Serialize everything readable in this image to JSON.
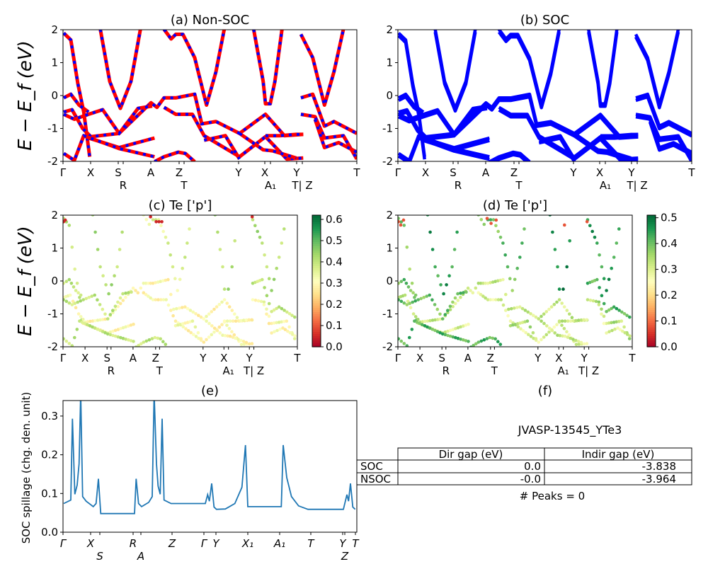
{
  "chart_data": [
    {
      "panel": "a",
      "type": "line",
      "title": "(a) Non-SOC",
      "ylabel": "E − E_f (eV)",
      "ylim": [
        -2,
        2
      ],
      "yticks": [
        -2,
        -1,
        0,
        1,
        2
      ],
      "xlim": [
        0,
        41.5
      ],
      "xticks": [
        {
          "k": 0,
          "label": "Γ"
        },
        {
          "k": 3.9,
          "label": "X"
        },
        {
          "k": 7.8,
          "label": "S"
        },
        {
          "k": 8.5,
          "label": "R"
        },
        {
          "k": 12.4,
          "label": "A"
        },
        {
          "k": 16.4,
          "label": "Z"
        },
        {
          "k": 17.1,
          "label": "T"
        },
        {
          "k": 24.8,
          "label": "Y"
        },
        {
          "k": 28.5,
          "label": "X"
        },
        {
          "k": 29.3,
          "label": "A₁"
        },
        {
          "k": 33.0,
          "label": "Y"
        },
        {
          "k": 33.8,
          "label": "T| Z"
        },
        {
          "k": 41.5,
          "label": "T"
        }
      ],
      "line_colors": [
        "#ff0000",
        "#0000ff"
      ],
      "style": "red solid with blue dashed overlay (spin up / spin down)"
    },
    {
      "panel": "b",
      "type": "line",
      "title": "(b) SOC",
      "ylim": [
        -2,
        2
      ],
      "line_color": "#0000ff"
    },
    {
      "panel": "c",
      "type": "scatter",
      "title": "(c)  Te ['p']",
      "ylabel": "E − E_f (eV)",
      "ylim": [
        -2,
        2
      ],
      "colormap": "RdYlGn",
      "colorbar": {
        "min": 0.0,
        "max": 0.62,
        "ticks": [
          "0.0",
          "0.1",
          "0.2",
          "0.3",
          "0.4",
          "0.5",
          "0.6"
        ]
      },
      "band_weights": [
        0.4,
        0.42,
        0.36,
        0.42,
        0.42,
        0.4,
        0.3,
        0.4,
        0.3,
        0.4,
        0.3,
        0.32,
        0.3,
        0.4,
        0.32,
        0.3,
        0.3,
        0.4
      ],
      "hot_points": [
        [
          0.1,
          1.8
        ],
        [
          0.4,
          1.85
        ],
        [
          16.5,
          1.8
        ],
        [
          17.0,
          1.8
        ],
        [
          17.5,
          1.8
        ],
        [
          33.5,
          1.95
        ],
        [
          15.5,
          1.95
        ]
      ],
      "hot_weight": 0.05
    },
    {
      "panel": "d",
      "type": "scatter",
      "title": "(d) Te ['p']",
      "ylim": [
        -2,
        2
      ],
      "colormap": "RdYlGn",
      "colorbar": {
        "min": 0.0,
        "max": 0.51,
        "ticks": [
          "0.0",
          "0.1",
          "0.2",
          "0.3",
          "0.4",
          "0.5"
        ]
      },
      "band_weights": [
        0.38,
        0.45,
        0.4,
        0.48,
        0.45,
        0.4,
        0.32,
        0.4,
        0.3,
        0.42,
        0.3,
        0.34,
        0.32,
        0.42,
        0.34,
        0.3,
        0.32,
        0.42
      ],
      "hot_points": [
        [
          0.1,
          1.8
        ],
        [
          0.5,
          1.7
        ],
        [
          1.0,
          1.85
        ],
        [
          15.8,
          1.9
        ],
        [
          16.5,
          1.75
        ],
        [
          17.4,
          1.85
        ],
        [
          29.5,
          1.7
        ],
        [
          33.5,
          1.8
        ]
      ],
      "hot_weight": 0.08
    },
    {
      "panel": "e",
      "type": "line",
      "title": "(e)",
      "ylabel": "SOC spillage (chg. den. unit)",
      "ylim": [
        0,
        0.34
      ],
      "yticks": [
        "0.0",
        "0.1",
        "0.2",
        "0.3"
      ],
      "xlim": [
        0,
        41.5
      ],
      "xticks": [
        {
          "k": 0,
          "label": "Γ"
        },
        {
          "k": 3.9,
          "label": "X"
        },
        {
          "k": 5.2,
          "label": "S"
        },
        {
          "k": 9.9,
          "label": "R"
        },
        {
          "k": 11.0,
          "label": "A"
        },
        {
          "k": 15.4,
          "label": "Z"
        },
        {
          "k": 19.9,
          "label": "Γ"
        },
        {
          "k": 21.6,
          "label": "Y"
        },
        {
          "k": 26.1,
          "label": "X₁"
        },
        {
          "k": 30.6,
          "label": "A₁"
        },
        {
          "k": 35.0,
          "label": "T"
        },
        {
          "k": 39.5,
          "label": "Y"
        },
        {
          "k": 39.8,
          "label": "Z"
        },
        {
          "k": 41.3,
          "label": "T"
        }
      ],
      "line_color": "#1f77b4",
      "x": [
        0.1,
        1.1,
        1.33,
        1.67,
        2.0,
        2.27,
        2.5,
        2.77,
        3.27,
        4.27,
        4.67,
        5.0,
        5.33,
        10.1,
        10.33,
        10.67,
        11.1,
        12.1,
        12.6,
        12.87,
        13.2,
        13.43,
        13.73,
        14.0,
        14.27,
        15.27,
        20.1,
        20.43,
        20.67,
        21.0,
        21.33,
        21.67,
        22.93,
        24.27,
        25.27,
        25.77,
        26.1,
        30.83,
        31.1,
        31.6,
        32.27,
        33.27,
        34.6,
        39.6,
        40.1,
        40.33,
        40.6,
        40.93,
        41.27
      ],
      "y": [
        0.074,
        0.083,
        0.293,
        0.098,
        0.122,
        0.177,
        0.36,
        0.092,
        0.08,
        0.066,
        0.074,
        0.138,
        0.048,
        0.048,
        0.138,
        0.074,
        0.066,
        0.077,
        0.092,
        0.36,
        0.177,
        0.119,
        0.098,
        0.293,
        0.083,
        0.074,
        0.074,
        0.097,
        0.08,
        0.126,
        0.065,
        0.059,
        0.06,
        0.074,
        0.116,
        0.225,
        0.066,
        0.066,
        0.225,
        0.141,
        0.092,
        0.068,
        0.059,
        0.059,
        0.097,
        0.08,
        0.126,
        0.065,
        0.059
      ]
    }
  ],
  "bands": [
    [
      [
        0.1,
        1.9
      ],
      [
        1.1,
        1.69
      ],
      [
        2.1,
        0.36
      ],
      [
        2.93,
        -0.5
      ],
      [
        3.77,
        -1.86
      ]
    ],
    [
      [
        5.27,
        2.01
      ],
      [
        6.6,
        0.43
      ],
      [
        8.1,
        -0.39
      ],
      [
        9.6,
        0.43
      ],
      [
        10.93,
        2.01
      ]
    ],
    [
      [
        14.27,
        2.01
      ],
      [
        15.27,
        1.72
      ],
      [
        15.93,
        1.86
      ],
      [
        16.93,
        1.86
      ],
      [
        18.6,
        1.15
      ],
      [
        20.27,
        -0.29
      ],
      [
        21.6,
        0.72
      ],
      [
        22.77,
        2.01
      ]
    ],
    [
      [
        26.93,
        2.01
      ],
      [
        28.27,
        0.43
      ],
      [
        28.6,
        -0.25
      ],
      [
        29.27,
        -0.25
      ],
      [
        29.93,
        0.43
      ],
      [
        30.93,
        2.01
      ]
    ],
    [
      [
        33.6,
        1.86
      ],
      [
        35.27,
        1.15
      ],
      [
        36.93,
        -0.29
      ],
      [
        38.27,
        0.72
      ],
      [
        39.6,
        2.01
      ]
    ],
    [
      [
        0.1,
        -0.07
      ],
      [
        1.1,
        0.04
      ],
      [
        2.27,
        -0.29
      ],
      [
        3.6,
        -0.5
      ]
    ],
    [
      [
        0.1,
        -0.5
      ],
      [
        1.27,
        -0.43
      ],
      [
        2.77,
        -1.0
      ],
      [
        3.93,
        -1.25
      ],
      [
        7.93,
        -1.15
      ],
      [
        12.43,
        -0.22
      ],
      [
        13.27,
        -0.36
      ],
      [
        14.27,
        -0.07
      ],
      [
        15.93,
        -0.07
      ],
      [
        18.6,
        0.04
      ],
      [
        19.6,
        -0.86
      ],
      [
        21.6,
        -0.79
      ],
      [
        24.93,
        -1.15
      ],
      [
        28.6,
        -0.57
      ],
      [
        31.27,
        -1.22
      ],
      [
        33.93,
        -1.18
      ]
    ],
    [
      [
        0.1,
        -0.57
      ],
      [
        1.6,
        -0.72
      ],
      [
        3.6,
        -0.57
      ],
      [
        5.6,
        -0.43
      ],
      [
        7.93,
        -1.15
      ],
      [
        10.6,
        -0.39
      ],
      [
        12.6,
        -0.32
      ]
    ],
    [
      [
        3.6,
        -1.29
      ],
      [
        7.93,
        -1.58
      ],
      [
        12.93,
        -1.29
      ]
    ],
    [
      [
        0.1,
        -1.76
      ],
      [
        1.6,
        -1.97
      ],
      [
        2.93,
        -1.22
      ],
      [
        7.93,
        -1.61
      ],
      [
        12.93,
        -1.86
      ]
    ],
    [
      [
        14.27,
        -0.36
      ],
      [
        15.93,
        -0.57
      ],
      [
        18.27,
        -0.57
      ],
      [
        19.93,
        -1.22
      ],
      [
        24.93,
        -1.86
      ],
      [
        28.6,
        -1.25
      ],
      [
        31.6,
        -1.93
      ],
      [
        33.93,
        -1.9
      ]
    ],
    [
      [
        19.93,
        -1.36
      ],
      [
        22.93,
        -1.22
      ],
      [
        24.93,
        -1.93
      ]
    ],
    [
      [
        24.93,
        -1.15
      ],
      [
        28.27,
        -1.65
      ],
      [
        29.6,
        -1.68
      ],
      [
        32.93,
        -1.9
      ]
    ],
    [
      [
        33.6,
        -0.07
      ],
      [
        35.27,
        0.04
      ],
      [
        36.93,
        -0.93
      ],
      [
        38.27,
        -0.79
      ],
      [
        41.5,
        -1.15
      ]
    ],
    [
      [
        33.6,
        -0.57
      ],
      [
        35.6,
        -0.64
      ],
      [
        36.93,
        -1.29
      ],
      [
        39.6,
        -1.22
      ],
      [
        41.5,
        -1.93
      ]
    ],
    [
      [
        35.6,
        -0.72
      ],
      [
        36.93,
        -1.58
      ],
      [
        38.93,
        -1.43
      ],
      [
        41.5,
        -1.72
      ]
    ],
    [
      [
        28.6,
        -1.22
      ],
      [
        30.6,
        -1.22
      ],
      [
        32.93,
        -1.18
      ],
      [
        33.93,
        -1.18
      ]
    ],
    [
      [
        12.93,
        -2.01
      ],
      [
        14.27,
        -1.86
      ],
      [
        16.27,
        -1.72
      ],
      [
        17.27,
        -1.76
      ],
      [
        18.6,
        -2.01
      ]
    ]
  ],
  "panel_f": {
    "title": "(f)",
    "material": "JVASP-13545_YTe3",
    "table": {
      "columns": [
        "Dir gap (eV)",
        "Indir gap (eV)"
      ],
      "rows": [
        {
          "label": "SOC",
          "dir": "0.0",
          "indir": "-3.838"
        },
        {
          "label": "NSOC",
          "dir": "-0.0",
          "indir": "-3.964"
        }
      ]
    },
    "peaks": "# Peaks = 0"
  }
}
